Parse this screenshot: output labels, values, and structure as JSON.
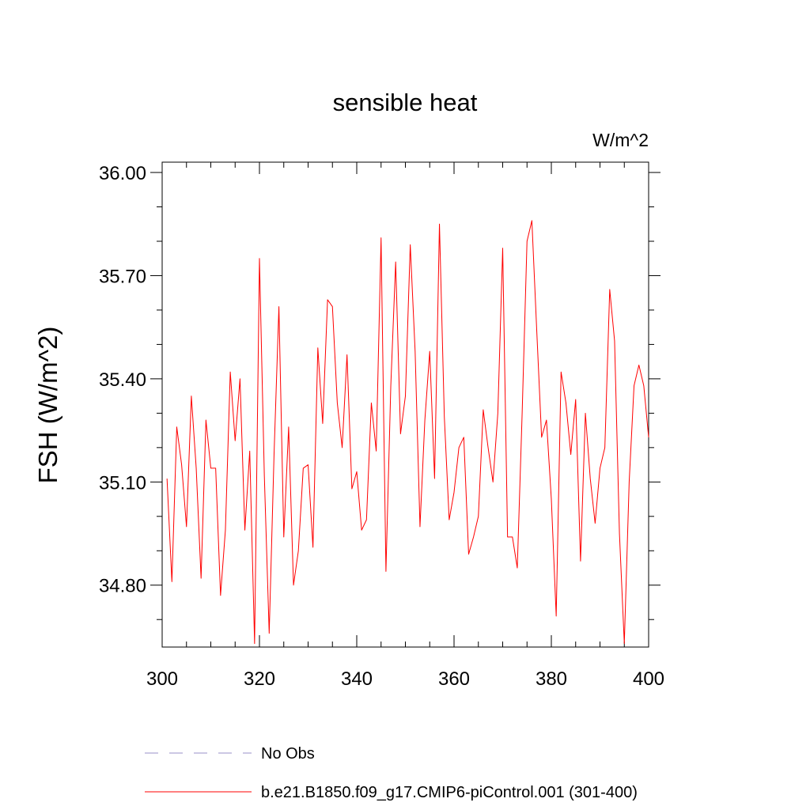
{
  "chart_data": {
    "type": "line",
    "title": "sensible heat",
    "units_label": "W/m^2",
    "ylabel": "FSH  (W/m^2)",
    "xlabel": "",
    "xlim": [
      300,
      400
    ],
    "ylim": [
      34.62,
      36.03
    ],
    "x_ticks": [
      300,
      320,
      340,
      360,
      380,
      400
    ],
    "x_tick_labels": [
      "300",
      "320",
      "340",
      "360",
      "380",
      "400"
    ],
    "y_ticks": [
      34.8,
      35.1,
      35.4,
      35.7,
      36.0
    ],
    "y_tick_labels": [
      "34.80",
      "35.10",
      "35.40",
      "35.70",
      "36.00"
    ],
    "grid": false,
    "legend_position": "bottom",
    "series": [
      {
        "name": "No Obs",
        "style": "dashed",
        "color": "#9a92c8",
        "x": [],
        "y": []
      },
      {
        "name": "b.e21.B1850.f09_g17.CMIP6-piControl.001 (301-400)",
        "style": "solid",
        "color": "#ff0000",
        "x": [
          301,
          302,
          303,
          304,
          305,
          306,
          307,
          308,
          309,
          310,
          311,
          312,
          313,
          314,
          315,
          316,
          317,
          318,
          319,
          320,
          321,
          322,
          323,
          324,
          325,
          326,
          327,
          328,
          329,
          330,
          331,
          332,
          333,
          334,
          335,
          336,
          337,
          338,
          339,
          340,
          341,
          342,
          343,
          344,
          345,
          346,
          347,
          348,
          349,
          350,
          351,
          352,
          353,
          354,
          355,
          356,
          357,
          358,
          359,
          360,
          361,
          362,
          363,
          364,
          365,
          366,
          367,
          368,
          369,
          370,
          371,
          372,
          373,
          374,
          375,
          376,
          377,
          378,
          379,
          380,
          381,
          382,
          383,
          384,
          385,
          386,
          387,
          388,
          389,
          390,
          391,
          392,
          393,
          394,
          395,
          396,
          397,
          398,
          399,
          400
        ],
        "y": [
          35.11,
          34.81,
          35.26,
          35.15,
          34.97,
          35.35,
          35.14,
          34.82,
          35.28,
          35.14,
          35.14,
          34.77,
          34.96,
          35.42,
          35.22,
          35.4,
          34.96,
          35.19,
          34.63,
          35.75,
          35.12,
          34.66,
          35.18,
          35.61,
          34.94,
          35.26,
          34.8,
          34.9,
          35.14,
          35.15,
          34.91,
          35.49,
          35.27,
          35.63,
          35.61,
          35.33,
          35.2,
          35.47,
          35.08,
          35.13,
          34.96,
          34.99,
          35.33,
          35.19,
          35.81,
          34.84,
          35.38,
          35.74,
          35.24,
          35.35,
          35.79,
          35.48,
          34.97,
          35.28,
          35.48,
          35.11,
          35.85,
          35.29,
          34.99,
          35.07,
          35.2,
          35.23,
          34.89,
          34.94,
          35.0,
          35.31,
          35.2,
          35.1,
          35.3,
          35.78,
          34.94,
          34.94,
          34.85,
          35.3,
          35.8,
          35.86,
          35.54,
          35.23,
          35.28,
          35.05,
          34.71,
          35.42,
          35.33,
          35.18,
          35.34,
          34.87,
          35.3,
          35.11,
          34.98,
          35.14,
          35.2,
          35.66,
          35.51,
          34.95,
          34.63,
          35.1,
          35.38,
          35.44,
          35.38,
          35.23
        ]
      }
    ]
  }
}
